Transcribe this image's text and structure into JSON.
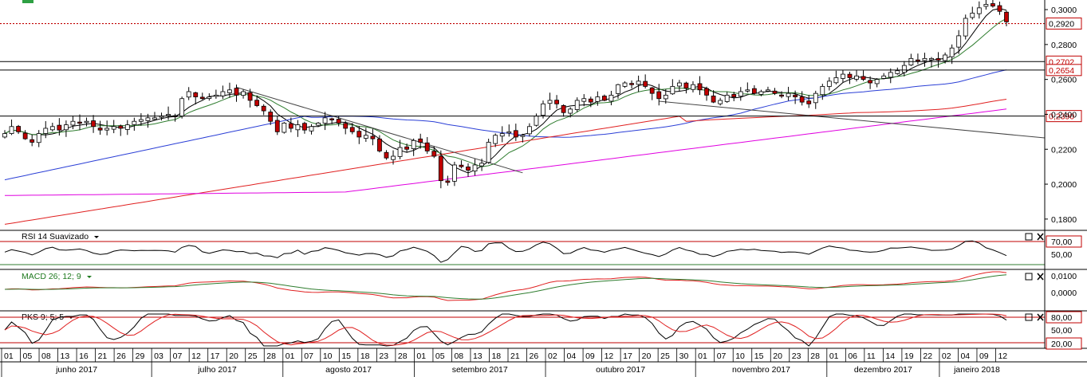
{
  "chart_data": {
    "type": "candlestick",
    "ylim": [
      0.174,
      0.3055
    ],
    "price_ticks": [
      "0,3000",
      "0,2800",
      "0,2600",
      "0,2400",
      "0,2200",
      "0,2000",
      "0,1800"
    ],
    "price_tick_values": [
      0.3,
      0.28,
      0.26,
      0.24,
      0.22,
      0.2,
      0.18
    ],
    "current_price": {
      "label": "0,2920",
      "value": 0.292
    },
    "levels": [
      {
        "label": "0,2702",
        "value": 0.2702
      },
      {
        "label": "0,2654",
        "value": 0.2654
      },
      {
        "label": "0,2390",
        "value": 0.239
      }
    ],
    "x_day_labels": [
      "01",
      "05",
      "08",
      "13",
      "16",
      "21",
      "26",
      "29",
      "03",
      "07",
      "12",
      "17",
      "20",
      "25",
      "28",
      "01",
      "07",
      "10",
      "15",
      "18",
      "23",
      "28",
      "01",
      "05",
      "08",
      "13",
      "18",
      "21",
      "26",
      "02",
      "04",
      "09",
      "12",
      "17",
      "20",
      "25",
      "30",
      "01",
      "07",
      "10",
      "15",
      "20",
      "23",
      "28",
      "01",
      "06",
      "11",
      "14",
      "19",
      "22",
      "02",
      "04",
      "09",
      "12"
    ],
    "months": [
      "junho 2017",
      "julho 2017",
      "agosto 2017",
      "setembro 2017",
      "outubro 2017",
      "novembro 2017",
      "dezembro 2017",
      "janeiro 2018"
    ],
    "closes": [
      0.229,
      0.233,
      0.23,
      0.226,
      0.224,
      0.229,
      0.232,
      0.233,
      0.231,
      0.234,
      0.236,
      0.235,
      0.236,
      0.233,
      0.231,
      0.232,
      0.233,
      0.232,
      0.234,
      0.236,
      0.237,
      0.238,
      0.238,
      0.239,
      0.24,
      0.239,
      0.249,
      0.253,
      0.25,
      0.249,
      0.25,
      0.251,
      0.253,
      0.254,
      0.251,
      0.253,
      0.248,
      0.245,
      0.242,
      0.236,
      0.23,
      0.235,
      0.232,
      0.234,
      0.231,
      0.233,
      0.235,
      0.238,
      0.237,
      0.235,
      0.232,
      0.23,
      0.227,
      0.228,
      0.226,
      0.219,
      0.215,
      0.216,
      0.221,
      0.22,
      0.225,
      0.224,
      0.219,
      0.216,
      0.202,
      0.201,
      0.211,
      0.21,
      0.208,
      0.211,
      0.212,
      0.224,
      0.228,
      0.229,
      0.23,
      0.227,
      0.228,
      0.233,
      0.239,
      0.246,
      0.248,
      0.246,
      0.241,
      0.243,
      0.248,
      0.249,
      0.247,
      0.25,
      0.248,
      0.251,
      0.257,
      0.258,
      0.257,
      0.259,
      0.256,
      0.252,
      0.249,
      0.251,
      0.256,
      0.258,
      0.255,
      0.257,
      0.254,
      0.251,
      0.247,
      0.248,
      0.251,
      0.25,
      0.253,
      0.254,
      0.252,
      0.253,
      0.254,
      0.252,
      0.251,
      0.252,
      0.25,
      0.247,
      0.246,
      0.252,
      0.256,
      0.259,
      0.261,
      0.263,
      0.261,
      0.262,
      0.26,
      0.258,
      0.26,
      0.262,
      0.264,
      0.265,
      0.268,
      0.272,
      0.271,
      0.272,
      0.272,
      0.271,
      0.274,
      0.278,
      0.285,
      0.295,
      0.298,
      0.301,
      0.303,
      0.302,
      0.299,
      0.293
    ],
    "rsi": {
      "title": "RSI 14 Suavizado",
      "levels": [
        "70,00",
        "50,00"
      ]
    },
    "macd": {
      "title": "MACD 26; 12; 9",
      "ticks": [
        "0,0100",
        "0,0000"
      ]
    },
    "pks": {
      "title": "PKS 9; 5; 5",
      "levels": [
        "80,00",
        "50,00",
        "20,00"
      ]
    },
    "colors": {
      "up_candle": "#ffffff",
      "down_candle": "#c00000",
      "wick": "#000000",
      "ma_short": "#000000",
      "ma_medium": "#2f7d2f",
      "ma_blue": "#2b3fd6",
      "ma_red": "#e02020",
      "ma_magenta": "#e000e0",
      "level_line": "#c00000",
      "oscillator": "#000000",
      "signal": "#e02020",
      "macd_signal": "#2f7d2f"
    }
  }
}
